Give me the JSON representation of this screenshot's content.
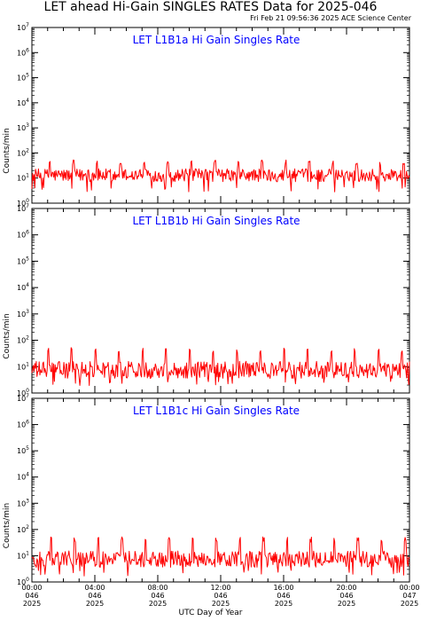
{
  "page": {
    "title": "LET ahead Hi-Gain SINGLES RATES Data for 2025-046",
    "timestamp": "Fri Feb 21 09:56:36 2025 ACE Science Center",
    "x_axis_label": "UTC Day of Year"
  },
  "colors": {
    "series": "#ff0000",
    "panel_title": "#0000ff",
    "axes": "#000000"
  },
  "chart_data": [
    {
      "type": "line",
      "title": "LET L1B1a Hi Gain Singles Rate",
      "ylabel": "Counts/min",
      "yscale": "log",
      "ylim": [
        1,
        10000000
      ],
      "ytick_exponents": [
        "0",
        "1",
        "2",
        "3",
        "4",
        "5",
        "6",
        "7"
      ],
      "xlim": [
        0,
        24
      ],
      "baseline": 13,
      "noise_factor_range": [
        0.55,
        1.8
      ],
      "spike_peak": 50,
      "spike_period_hours": 1.5,
      "spike_offset_hours": 1.1,
      "series": [
        {
          "color": "#ff0000"
        }
      ]
    },
    {
      "type": "line",
      "title": "LET L1B1b Hi Gain Singles Rate",
      "ylabel": "Counts/min",
      "yscale": "log",
      "ylim": [
        1,
        10000000
      ],
      "ytick_exponents": [
        "0",
        "1",
        "2",
        "3",
        "4",
        "5",
        "6",
        "7"
      ],
      "xlim": [
        0,
        24
      ],
      "baseline": 8,
      "noise_factor_range": [
        0.45,
        2.0
      ],
      "spike_peak": 50,
      "spike_period_hours": 1.5,
      "spike_offset_hours": 1.0,
      "series": [
        {
          "color": "#ff0000"
        }
      ]
    },
    {
      "type": "line",
      "title": "LET L1B1c Hi Gain Singles Rate",
      "ylabel": "Counts/min",
      "yscale": "log",
      "ylim": [
        1,
        10000000
      ],
      "ytick_exponents": [
        "0",
        "1",
        "2",
        "3",
        "4",
        "5",
        "6",
        "7"
      ],
      "xlim": [
        0,
        24
      ],
      "baseline": 8,
      "noise_factor_range": [
        0.45,
        1.9
      ],
      "spike_peak": 50,
      "spike_period_hours": 1.5,
      "spike_offset_hours": 1.2,
      "series": [
        {
          "color": "#ff0000"
        }
      ]
    }
  ],
  "x_ticks": [
    {
      "hours": 0,
      "time": "00:00",
      "doy": "046",
      "year": "2025"
    },
    {
      "hours": 4,
      "time": "04:00",
      "doy": "046",
      "year": "2025"
    },
    {
      "hours": 8,
      "time": "08:00",
      "doy": "046",
      "year": "2025"
    },
    {
      "hours": 12,
      "time": "12:00",
      "doy": "046",
      "year": "2025"
    },
    {
      "hours": 16,
      "time": "16:00",
      "doy": "046",
      "year": "2025"
    },
    {
      "hours": 20,
      "time": "20:00",
      "doy": "046",
      "year": "2025"
    },
    {
      "hours": 24,
      "time": "00:00",
      "doy": "047",
      "year": "2025"
    }
  ]
}
